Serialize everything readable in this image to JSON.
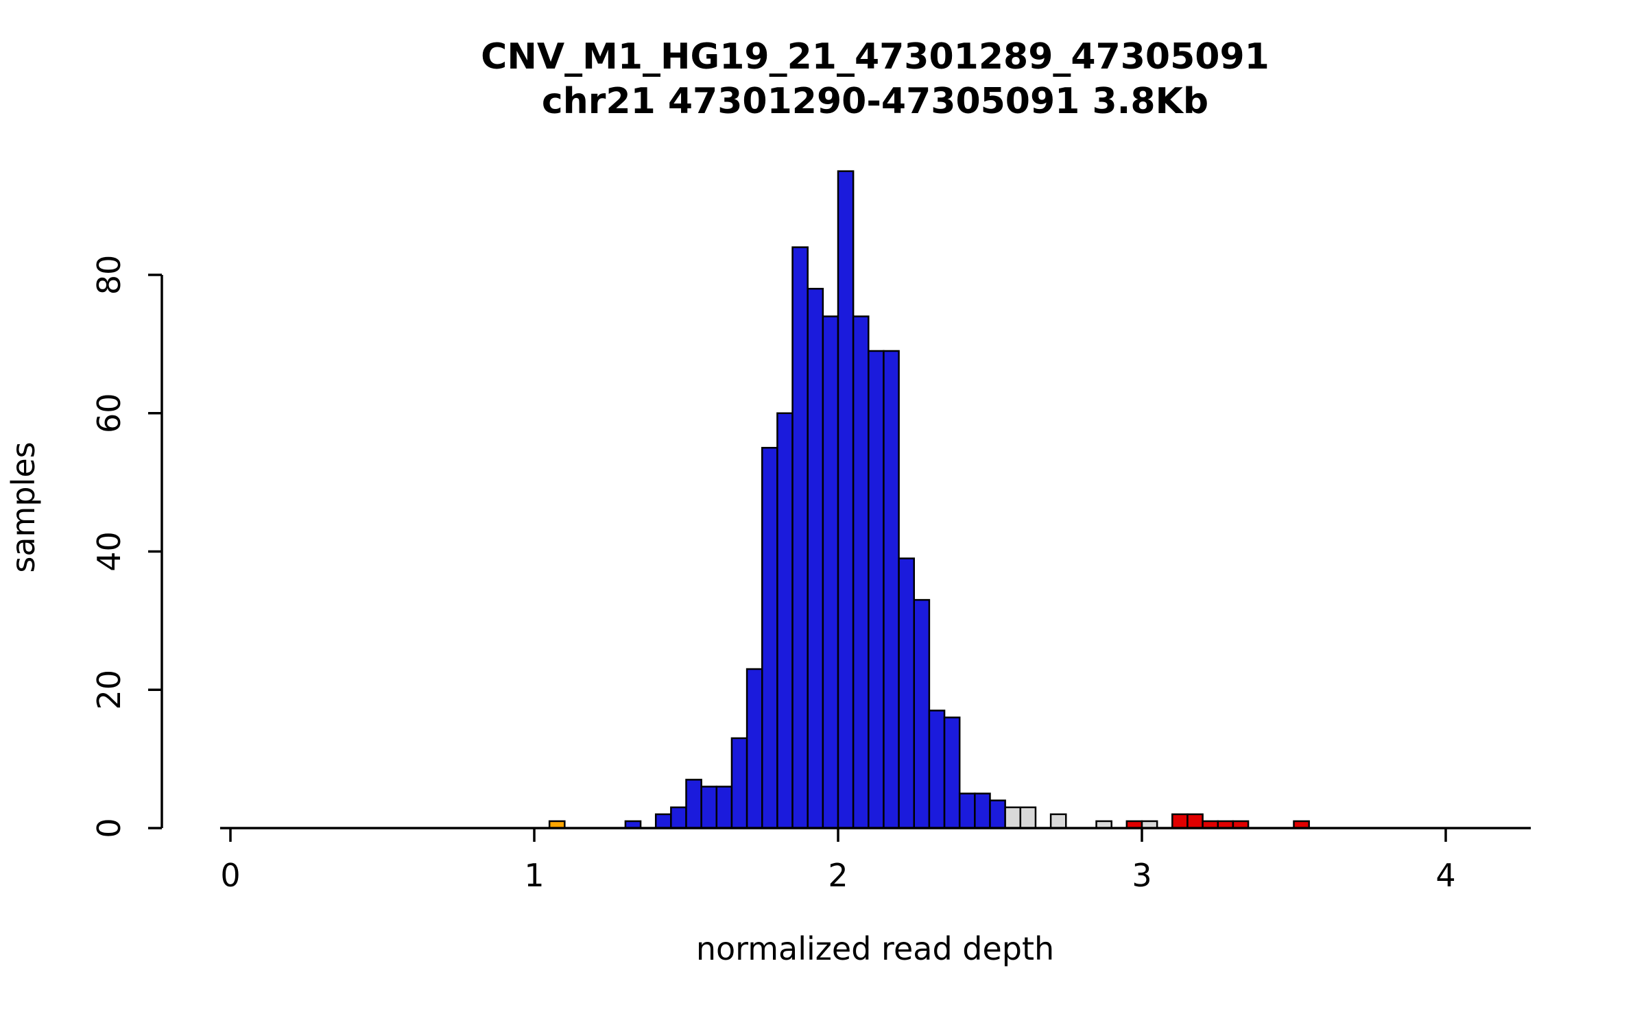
{
  "chart_data": {
    "type": "bar",
    "title": "CNV_M1_HG19_21_47301289_47305091",
    "subtitle": "chr21 47301290-47305091 3.8Kb",
    "xlabel": "normalized read depth",
    "ylabel": "samples",
    "x_ticks": [
      0,
      1,
      2,
      3,
      4
    ],
    "y_ticks": [
      0,
      20,
      40,
      60,
      80
    ],
    "xlim": [
      -0.034,
      4.28
    ],
    "ylim": [
      0,
      95
    ],
    "bin_width": 0.05,
    "legend": "none",
    "grid": false,
    "colors": {
      "blue": "#1b1bdc",
      "gray": "#d9d9d9",
      "red": "#e00000",
      "orange": "#ffa500",
      "axis": "#000000",
      "bar_border": "#000000",
      "background": "#ffffff"
    },
    "bins": [
      {
        "x": 1.05,
        "n": 1,
        "color": "orange"
      },
      {
        "x": 1.3,
        "n": 1,
        "color": "blue"
      },
      {
        "x": 1.4,
        "n": 2,
        "color": "blue"
      },
      {
        "x": 1.45,
        "n": 3,
        "color": "blue"
      },
      {
        "x": 1.5,
        "n": 7,
        "color": "blue"
      },
      {
        "x": 1.55,
        "n": 6,
        "color": "blue"
      },
      {
        "x": 1.6,
        "n": 6,
        "color": "blue"
      },
      {
        "x": 1.65,
        "n": 13,
        "color": "blue"
      },
      {
        "x": 1.7,
        "n": 23,
        "color": "blue"
      },
      {
        "x": 1.75,
        "n": 55,
        "color": "blue"
      },
      {
        "x": 1.8,
        "n": 60,
        "color": "blue"
      },
      {
        "x": 1.85,
        "n": 84,
        "color": "blue"
      },
      {
        "x": 1.9,
        "n": 78,
        "color": "blue"
      },
      {
        "x": 1.95,
        "n": 74,
        "color": "blue"
      },
      {
        "x": 2.0,
        "n": 95,
        "color": "blue"
      },
      {
        "x": 2.05,
        "n": 74,
        "color": "blue"
      },
      {
        "x": 2.1,
        "n": 69,
        "color": "blue"
      },
      {
        "x": 2.15,
        "n": 69,
        "color": "blue"
      },
      {
        "x": 2.2,
        "n": 39,
        "color": "blue"
      },
      {
        "x": 2.25,
        "n": 33,
        "color": "blue"
      },
      {
        "x": 2.3,
        "n": 17,
        "color": "blue"
      },
      {
        "x": 2.35,
        "n": 16,
        "color": "blue"
      },
      {
        "x": 2.4,
        "n": 5,
        "color": "blue"
      },
      {
        "x": 2.45,
        "n": 5,
        "color": "blue"
      },
      {
        "x": 2.5,
        "n": 4,
        "color": "blue"
      },
      {
        "x": 2.55,
        "n": 3,
        "color": "gray"
      },
      {
        "x": 2.6,
        "n": 3,
        "color": "gray"
      },
      {
        "x": 2.7,
        "n": 2,
        "color": "gray"
      },
      {
        "x": 2.85,
        "n": 1,
        "color": "gray"
      },
      {
        "x": 2.95,
        "n": 1,
        "color": "red"
      },
      {
        "x": 3.0,
        "n": 1,
        "color": "gray"
      },
      {
        "x": 3.1,
        "n": 2,
        "color": "red"
      },
      {
        "x": 3.15,
        "n": 2,
        "color": "red"
      },
      {
        "x": 3.2,
        "n": 1,
        "color": "red"
      },
      {
        "x": 3.25,
        "n": 1,
        "color": "red"
      },
      {
        "x": 3.3,
        "n": 1,
        "color": "red"
      },
      {
        "x": 3.5,
        "n": 1,
        "color": "red"
      }
    ]
  }
}
